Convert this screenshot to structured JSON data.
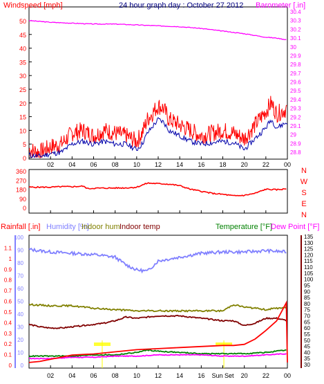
{
  "title": "24 hour graph day : October 27 2012",
  "colors": {
    "wind": "#ff0000",
    "gust": "#ff0000",
    "avg_wind": "#0000aa",
    "barometer": "#ff00ff",
    "direction": "#ff0000",
    "humidity": "#8080ff",
    "indoor_hum": "#808000",
    "indoor_temp": "#800000",
    "temperature": "#008000",
    "dew_point": "#ff00ff",
    "rain": "#ff0000",
    "title": "#000080",
    "sun": "#ffff00",
    "grid": "#000000",
    "frame": "#000000"
  },
  "chart_data": [
    {
      "type": "line",
      "name_label": "wind-chart",
      "ylabel": "Windspeed [mph]",
      "y2label": "Barometer [.in]",
      "ylim": [
        0,
        50
      ],
      "y_ticks": [
        "0",
        "5",
        "10",
        "15",
        "20",
        "25",
        "30",
        "35",
        "40",
        "45",
        "50"
      ],
      "y2lim": [
        28.8,
        30.4
      ],
      "y2_ticks": [
        "28.8",
        "28.9",
        "29",
        "29.1",
        "29.2",
        "29.3",
        "29.4",
        "29.5",
        "29.6",
        "29.7",
        "29.8",
        "29.9",
        "30",
        "30.1",
        "30.2",
        "30.3",
        "30.4"
      ],
      "x_ticks": [
        "02",
        "04",
        "06",
        "08",
        "10",
        "12",
        "14",
        "16",
        "18",
        "20",
        "22",
        "00"
      ],
      "xlim": [
        0,
        24
      ],
      "grid": false,
      "series": [
        {
          "key": "gust",
          "x": [
            0,
            1,
            2,
            3,
            4,
            5,
            6,
            7,
            8,
            9,
            10,
            10.5,
            11,
            12,
            12.5,
            13,
            14,
            15,
            16,
            17,
            18,
            19,
            20,
            21,
            22,
            22.5,
            23,
            24
          ],
          "values": [
            3,
            2,
            4,
            5,
            9,
            10,
            8,
            10,
            9,
            8,
            6,
            9,
            14,
            19,
            18,
            14,
            12,
            10,
            8,
            9,
            10,
            9,
            7,
            12,
            17,
            20,
            16,
            18
          ]
        },
        {
          "key": "avg_wind",
          "x": [
            0,
            1,
            2,
            3,
            4,
            5,
            6,
            7,
            8,
            9,
            10,
            10.5,
            11,
            12,
            12.5,
            13,
            14,
            15,
            16,
            17,
            18,
            19,
            20,
            21,
            22,
            22.5,
            23,
            24
          ],
          "values": [
            1,
            0.5,
            1.5,
            2,
            5,
            6,
            5,
            6,
            5,
            5,
            3,
            5,
            9,
            14,
            13,
            10,
            8,
            6,
            5,
            5.5,
            6,
            5.5,
            3,
            7,
            11,
            14,
            11,
            13
          ]
        },
        {
          "key": "barometer",
          "x": [
            0,
            2,
            4,
            6,
            8,
            10,
            12,
            14,
            16,
            18,
            20,
            22,
            23,
            24
          ],
          "values": [
            30.3,
            30.28,
            30.27,
            30.26,
            30.26,
            30.25,
            30.24,
            30.23,
            30.21,
            30.18,
            30.15,
            30.11,
            30.1,
            30.08
          ]
        }
      ]
    },
    {
      "type": "line",
      "name_label": "direction-chart",
      "ylim": [
        0,
        360
      ],
      "y_ticks": [
        "0",
        "90",
        "180",
        "270",
        "360"
      ],
      "compass": [
        "N",
        "W",
        "S",
        "E",
        "N"
      ],
      "x_ticks": [],
      "xlim": [
        0,
        24
      ],
      "series": [
        {
          "key": "direction",
          "x": [
            0,
            1,
            2,
            3,
            4,
            5,
            5.5,
            6,
            8,
            9,
            10,
            11,
            12,
            13,
            14,
            15,
            16,
            17,
            18,
            19,
            20,
            21,
            22,
            23,
            24
          ],
          "values": [
            200,
            200,
            200,
            205,
            205,
            210,
            185,
            190,
            192,
            193,
            200,
            240,
            235,
            230,
            215,
            180,
            160,
            140,
            130,
            115,
            120,
            140,
            180,
            175,
            185
          ]
        }
      ]
    },
    {
      "type": "line",
      "name_label": "temp-chart",
      "labels": {
        "rain": "Rainfall [.in]",
        "humidity": "Humidity [%]",
        "indoor_hum": "Indoor hum",
        "indoor_temp": "Indoor temp",
        "temperature": "Temperature [°F]",
        "dew_point": "Dew Point [°F]"
      },
      "rain_ylim": [
        0,
        1.2
      ],
      "rain_ticks": [
        "0",
        "0.1",
        "0.2",
        "0.3",
        "0.4",
        "0.5",
        "0.6",
        "0.7",
        "0.8",
        "0.9",
        "1",
        "1.1"
      ],
      "hum_ylim": [
        0,
        100
      ],
      "hum_ticks": [
        "0",
        "10",
        "20",
        "30",
        "40",
        "50",
        "60",
        "70",
        "80",
        "90",
        "100"
      ],
      "temp_ylim": [
        30,
        135
      ],
      "temp_ticks": [
        "30",
        "35",
        "40",
        "45",
        "50",
        "55",
        "60",
        "65",
        "70",
        "75",
        "80",
        "85",
        "90",
        "95",
        "100",
        "105",
        "110",
        "115",
        "120",
        "125",
        "130",
        "135"
      ],
      "x_ticks": [
        "02",
        "04",
        "06",
        "08",
        "10",
        "12",
        "14",
        "16",
        "Sun Set",
        "20",
        "22",
        "00"
      ],
      "sun_markers": [
        {
          "x": 6.8
        },
        {
          "x": 18.1
        }
      ],
      "xlim": [
        0,
        24
      ],
      "series": [
        {
          "key": "humidity",
          "axis": "hum",
          "x": [
            0,
            2,
            4,
            6,
            8,
            9,
            10,
            11,
            12,
            14,
            16,
            18,
            20,
            22,
            24
          ],
          "values": [
            90,
            88,
            87,
            86,
            84,
            78,
            74,
            73,
            81,
            84,
            87,
            88,
            88,
            89,
            88
          ]
        },
        {
          "key": "indoor_temp",
          "axis": "temp",
          "x": [
            0,
            1,
            2,
            3,
            4,
            5,
            6,
            7,
            8,
            9,
            10,
            11,
            12,
            14,
            15,
            16,
            17,
            18,
            19,
            20,
            21,
            22,
            23,
            24
          ],
          "values": [
            63,
            61,
            60,
            60,
            61,
            62,
            63,
            64,
            66,
            69,
            68,
            69,
            70,
            70,
            69,
            68,
            67,
            66,
            66,
            62,
            64,
            68,
            68,
            66
          ]
        },
        {
          "key": "indoor_hum",
          "axis": "hum",
          "x": [
            0,
            2,
            4,
            6,
            8,
            10,
            12,
            14,
            16,
            18,
            19,
            20,
            22,
            24
          ],
          "values": [
            47,
            46,
            46,
            44,
            43,
            42,
            42,
            42,
            42,
            42,
            47,
            45,
            43,
            45
          ]
        },
        {
          "key": "temperature",
          "axis": "temp",
          "x": [
            0,
            2,
            4,
            6,
            8,
            10,
            11,
            12,
            14,
            16,
            18,
            20,
            22,
            24
          ],
          "values": [
            37,
            37,
            37,
            38,
            38,
            40,
            42,
            41,
            40,
            39,
            39,
            39,
            40,
            42
          ]
        },
        {
          "key": "dew_point",
          "axis": "temp",
          "x": [
            0,
            2,
            4,
            6,
            8,
            10,
            12,
            14,
            16,
            18,
            20,
            22,
            24
          ],
          "values": [
            35,
            35,
            36,
            36,
            37,
            37,
            38,
            38,
            38,
            37,
            37,
            38,
            39
          ]
        },
        {
          "key": "rain",
          "axis": "rain",
          "x": [
            0,
            1,
            2,
            3,
            4,
            6,
            8,
            10,
            12,
            14,
            16,
            18,
            19,
            20,
            21,
            22,
            23,
            23.9,
            24
          ],
          "values": [
            0.02,
            0.03,
            0.05,
            0.07,
            0.09,
            0.1,
            0.12,
            0.14,
            0.15,
            0.16,
            0.17,
            0.18,
            0.18,
            0.19,
            0.24,
            0.32,
            0.41,
            0.58,
            0.02
          ]
        }
      ]
    }
  ]
}
